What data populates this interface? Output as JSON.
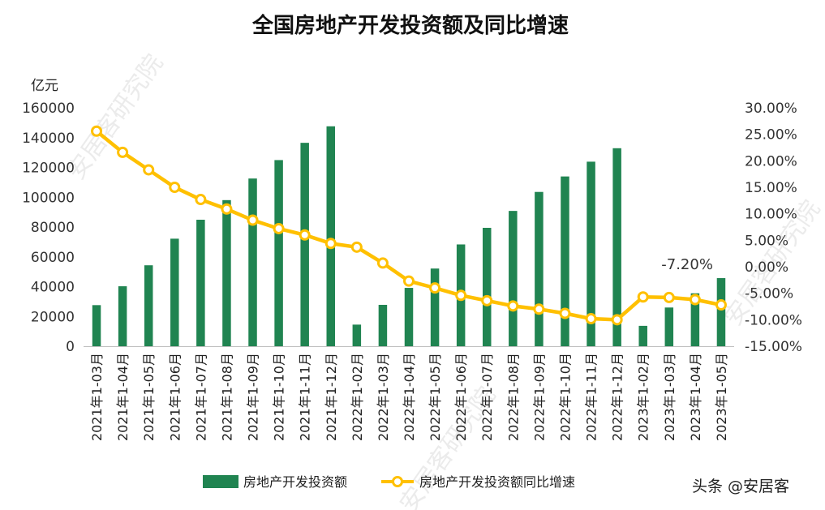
{
  "colors": {
    "bar": "#208451",
    "line": "#ffc000",
    "marker_fill": "#ffffff",
    "axis": "#bfbfbf",
    "text": "#222222"
  },
  "chart_data": {
    "type": "bar",
    "title": "全国房地产开发投资额及同比增速",
    "ylabel": "亿元",
    "ylim": [
      0,
      160000
    ],
    "y_ticks": [
      0,
      20000,
      40000,
      60000,
      80000,
      100000,
      120000,
      140000,
      160000
    ],
    "y2lim": [
      -0.15,
      0.3
    ],
    "y2_ticks": [
      "-15.00%",
      "-10.00%",
      "-5.00%",
      "0.00%",
      "5.00%",
      "10.00%",
      "15.00%",
      "20.00%",
      "25.00%",
      "30.00%"
    ],
    "categories": [
      "2021年1-03月",
      "2021年1-04月",
      "2021年1-05月",
      "2021年1-06月",
      "2021年1-07月",
      "2021年1-08月",
      "2021年1-09月",
      "2021年1-10月",
      "2021年1-11月",
      "2021年1-12月",
      "2022年1-02月",
      "2022年1-03月",
      "2022年1-04月",
      "2022年1-05月",
      "2022年1-06月",
      "2022年1-07月",
      "2022年1-08月",
      "2022年1-09月",
      "2022年1-10月",
      "2022年1-11月",
      "2022年1-12月",
      "2023年1-02月",
      "2023年1-03月",
      "2023年1-04月",
      "2023年1-05月"
    ],
    "series": [
      {
        "name": "房地产开发投资额",
        "kind": "bar",
        "axis": "left",
        "values": [
          27576,
          40240,
          54318,
          72179,
          84895,
          98060,
          112559,
          124934,
          136517,
          147602,
          14499,
          27765,
          39154,
          52134,
          68314,
          79462,
          90809,
          103559,
          113945,
          123863,
          132895,
          13669,
          25974,
          35514,
          45701
        ]
      },
      {
        "name": "房地产开发投资额同比增速",
        "kind": "line",
        "axis": "right",
        "values": [
          0.256,
          0.216,
          0.183,
          0.15,
          0.127,
          0.109,
          0.088,
          0.072,
          0.06,
          0.044,
          0.037,
          0.007,
          -0.027,
          -0.04,
          -0.054,
          -0.064,
          -0.074,
          -0.08,
          -0.088,
          -0.098,
          -0.1,
          -0.057,
          -0.058,
          -0.062,
          -0.072
        ]
      }
    ],
    "annotations": [
      {
        "index": 24,
        "text": "-7.20%"
      }
    ],
    "legend_position": "bottom",
    "grid": false
  },
  "watermark": "安居客研究院",
  "source": "头条 @安居客"
}
